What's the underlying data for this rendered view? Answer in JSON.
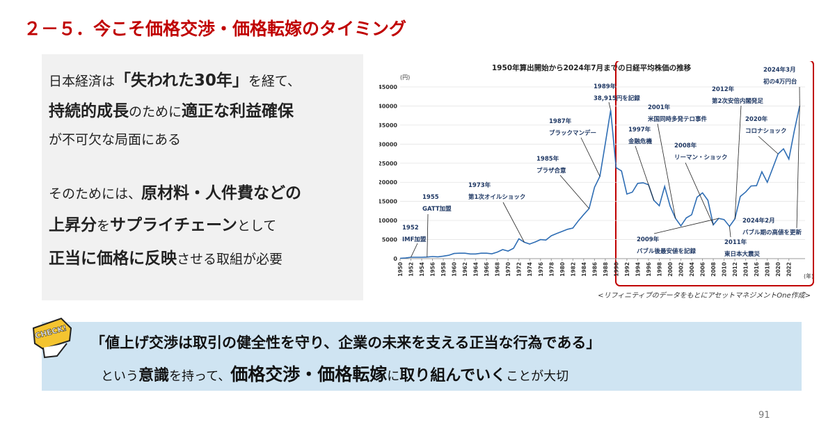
{
  "title": "２－５．今こそ価格交渉・価格転嫁のタイミング",
  "left_box": {
    "lines": [
      [
        {
          "text": "日本経済は"
        },
        {
          "text": "「失われた30年」",
          "bold": true
        },
        {
          "text": "を経て、"
        }
      ],
      [
        {
          "text": "持続的成長",
          "bold": true
        },
        {
          "text": "のために"
        },
        {
          "text": "適正な利益確保",
          "bold": true
        }
      ],
      [
        {
          "text": "が不可欠な局面にある"
        }
      ],
      [
        {
          "text": "そのためには、"
        },
        {
          "text": "原材料・人件費",
          "bold": true
        },
        {
          "text": "などの",
          "bold": true
        }
      ],
      [
        {
          "text": "上昇分",
          "bold": true
        },
        {
          "text": "を"
        },
        {
          "text": "サプライチェーン",
          "bold": true
        },
        {
          "text": "として"
        }
      ],
      [
        {
          "text": "正当に価格に反映",
          "bold": true
        },
        {
          "text": "させる取組が必要"
        }
      ]
    ]
  },
  "chart_data": {
    "type": "line",
    "title": "1950年算出開始から2024年7月までの日経平均株価の推移",
    "y_unit": "(円)",
    "x_unit": "(年)",
    "color": "#2e6db4",
    "x": [
      1950,
      1951,
      1952,
      1953,
      1954,
      1955,
      1956,
      1957,
      1958,
      1959,
      1960,
      1961,
      1962,
      1963,
      1964,
      1965,
      1966,
      1967,
      1968,
      1969,
      1970,
      1971,
      1972,
      1973,
      1974,
      1975,
      1976,
      1977,
      1978,
      1979,
      1980,
      1981,
      1982,
      1983,
      1984,
      1985,
      1986,
      1987,
      1988,
      1989,
      1990,
      1991,
      1992,
      1993,
      1994,
      1995,
      1996,
      1997,
      1998,
      1999,
      2000,
      2001,
      2002,
      2003,
      2004,
      2005,
      2006,
      2007,
      2008,
      2009,
      2010,
      2011,
      2012,
      2013,
      2014,
      2015,
      2016,
      2017,
      2018,
      2019,
      2020,
      2021,
      2022,
      2023,
      2024
    ],
    "values": [
      100,
      160,
      360,
      370,
      360,
      425,
      550,
      475,
      660,
      870,
      1350,
      1430,
      1420,
      1220,
      1220,
      1420,
      1430,
      1280,
      1710,
      2360,
      1990,
      2710,
      5200,
      4300,
      3820,
      4360,
      4990,
      4870,
      6000,
      6570,
      7120,
      7680,
      8020,
      9890,
      11540,
      13110,
      18700,
      21560,
      30160,
      38915,
      23850,
      22980,
      16920,
      17420,
      19720,
      19870,
      19360,
      15260,
      13840,
      18930,
      13790,
      10540,
      8580,
      10680,
      11490,
      16110,
      17230,
      15310,
      8860,
      10550,
      10230,
      8460,
      10400,
      16290,
      17450,
      19030,
      19110,
      22760,
      20010,
      23660,
      27440,
      28790,
      26090,
      33460,
      40000
    ],
    "xlim": [
      1950,
      2025
    ],
    "xticks": [
      1950,
      1952,
      1954,
      1956,
      1958,
      1960,
      1962,
      1964,
      1966,
      1968,
      1970,
      1972,
      1974,
      1976,
      1978,
      1980,
      1982,
      1984,
      1986,
      1988,
      1990,
      1992,
      1994,
      1996,
      1998,
      2000,
      2002,
      2004,
      2006,
      2008,
      2010,
      2012,
      2014,
      2016,
      2018,
      2020,
      2022
    ],
    "ylim": [
      0,
      45000
    ],
    "yticks": [
      0,
      5000,
      10000,
      15000,
      20000,
      25000,
      30000,
      35000,
      40000,
      45000
    ],
    "annotations": [
      [
        "1952",
        "IMF加盟"
      ],
      [
        "1955",
        "GATT加盟"
      ],
      [
        "1973年",
        "第1次オイルショック"
      ],
      [
        "1985年",
        "プラザ合意"
      ],
      [
        "1987年",
        "ブラックマンデー"
      ],
      [
        "1989年",
        "38,915円を記録"
      ],
      [
        "1997年",
        "金融危機"
      ],
      [
        "2001年",
        "米国同時多発テロ事件"
      ],
      [
        "2008年",
        "リーマン・ショック"
      ],
      [
        "2012年",
        "第2次安倍内閣発足"
      ],
      [
        "2020年",
        "コロナショック"
      ],
      [
        "2024年3月",
        "初の4万円台"
      ],
      [
        "2009年",
        "バブル後最安値を記録"
      ],
      [
        "2011年",
        "東日本大震災"
      ],
      [
        "2024年2月",
        "バブル期の高値を更新"
      ]
    ],
    "source": "<リフィニティブのデータをもとにアセットマネジメントOne作成>"
  },
  "check_box": {
    "badge": "CHECK!",
    "line1": "「値上げ交渉は取引の健全性を守り、企業の未来を支える正当な行為である」",
    "line2": [
      {
        "text": "という"
      },
      {
        "text": "意識",
        "bold": true
      },
      {
        "text": "を持って、"
      },
      {
        "text": "価格交渉・価格転嫁",
        "bold": true,
        "big": true
      },
      {
        "text": "に"
      },
      {
        "text": "取り組んでいく",
        "bold": true
      },
      {
        "text": "ことが大切"
      }
    ]
  },
  "page_number": "91"
}
